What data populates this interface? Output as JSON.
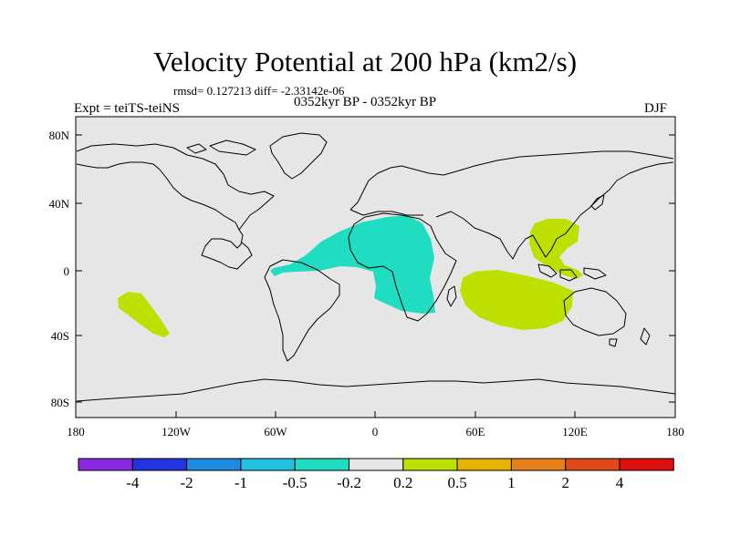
{
  "title": "Velocity Potential at 200 hPa (km2/s)",
  "stats": "rmsd= 0.127213 diff= -2.33142e-06",
  "left_label": "Expt = teiTS-teiNS",
  "center_label": "0352kyr BP - 0352kyr BP",
  "right_label": "DJF",
  "lat_ticks": [
    "80N",
    "40N",
    "0",
    "40S",
    "80S"
  ],
  "lon_ticks": [
    "180",
    "120W",
    "60W",
    "0",
    "60E",
    "120E",
    "180"
  ],
  "colorbar": {
    "colors": [
      "#8a2be2",
      "#2433e0",
      "#1e8ae0",
      "#22c1e0",
      "#20dcc0",
      "#e6e6e6",
      "#bde000",
      "#e6b300",
      "#e6801a",
      "#e04a1a",
      "#e00f0f"
    ],
    "labels": [
      "-4",
      "-2",
      "-1",
      "-0.5",
      "-0.2",
      "0.2",
      "0.5",
      "1",
      "2",
      "4"
    ]
  },
  "colors": {
    "ocean": "#e6e6e6",
    "negative_anomaly": "#20dcc0",
    "positive_anomaly": "#bde000",
    "coast": "#000000"
  },
  "anomalies": [
    {
      "region": "tropical-atlantic-africa",
      "sign": "negative",
      "level": "-0.5 to -0.2"
    },
    {
      "region": "indian-ocean",
      "sign": "positive",
      "level": "0.2 to 0.5"
    },
    {
      "region": "south-china-sea-maritime-continent",
      "sign": "positive",
      "level": "0.2 to 0.5"
    },
    {
      "region": "south-pacific",
      "sign": "positive",
      "level": "0.2 to 0.5"
    }
  ]
}
